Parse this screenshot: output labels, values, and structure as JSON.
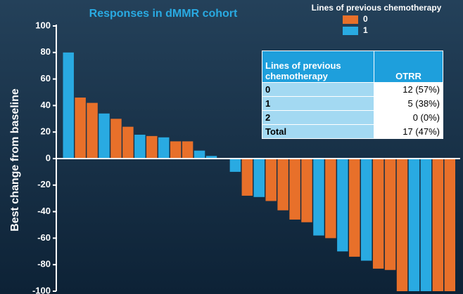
{
  "chart_data": {
    "type": "bar",
    "title": "Responses in dMMR cohort",
    "ylabel": "Best change from baseline",
    "values": [
      80,
      46,
      42,
      34,
      30,
      24,
      18,
      17,
      16,
      13,
      13,
      6,
      2,
      0,
      -10,
      -28,
      -29,
      -32,
      -39,
      -46,
      -48,
      -58,
      -60,
      -70,
      -74,
      -77,
      -83,
      -84,
      -100,
      -100,
      -100,
      -100,
      -100
    ],
    "groups": [
      1,
      0,
      0,
      1,
      0,
      0,
      1,
      0,
      1,
      0,
      0,
      1,
      1,
      0,
      1,
      0,
      1,
      0,
      0,
      0,
      0,
      1,
      0,
      1,
      0,
      1,
      0,
      0,
      0,
      1,
      1,
      0,
      0
    ],
    "legend": {
      "title": "Lines of previous chemotherapy",
      "position": "top-right",
      "entries": [
        {
          "name": "0",
          "color": "#e8702a"
        },
        {
          "name": "1",
          "color": "#29aae2"
        }
      ]
    },
    "ylim": [
      -100,
      100
    ],
    "yticks": [
      -100,
      -80,
      -60,
      -40,
      -20,
      0,
      20,
      40,
      60,
      80,
      100
    ]
  },
  "table": {
    "header": [
      "Lines of previous chemotherapy",
      "OTRR"
    ],
    "rows": [
      [
        "0",
        "12 (57%)"
      ],
      [
        "1",
        "5 (38%)"
      ],
      [
        "2",
        "0 (0%)"
      ],
      [
        "Total",
        "17 (47%)"
      ]
    ]
  }
}
